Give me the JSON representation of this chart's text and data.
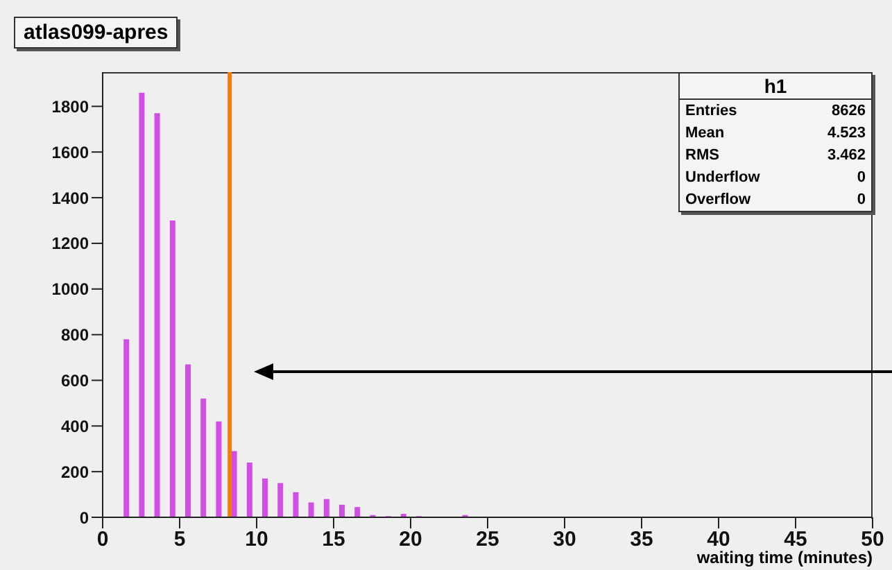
{
  "chart_data": {
    "type": "histogram",
    "title": "atlas099-apres",
    "xlabel": "waiting time (minutes)",
    "bins": [
      0,
      1,
      2,
      3,
      4,
      5,
      6,
      7,
      8,
      9,
      10,
      11,
      12,
      13,
      14,
      15,
      16,
      17,
      18,
      19,
      20,
      21,
      22,
      23,
      24,
      25,
      26,
      27,
      28,
      29,
      30,
      31,
      32,
      33,
      34,
      35,
      36,
      37,
      38,
      39,
      40,
      41,
      42,
      43,
      44,
      45,
      46,
      47,
      48,
      49,
      50
    ],
    "values": [
      0,
      780,
      1860,
      1770,
      1300,
      670,
      520,
      420,
      290,
      240,
      170,
      150,
      110,
      65,
      80,
      55,
      45,
      10,
      5,
      15,
      5,
      3,
      3,
      10,
      0,
      0,
      0,
      0,
      0,
      0,
      0,
      0,
      0,
      0,
      0,
      0,
      0,
      0,
      0,
      0,
      0,
      0,
      0,
      0,
      0,
      0,
      0,
      0,
      0,
      0
    ],
    "color": "#d24fe6",
    "xlim": [
      0,
      50
    ],
    "xticks": [
      0,
      5,
      10,
      15,
      20,
      25,
      30,
      35,
      40,
      45,
      50
    ],
    "ylim": [
      0,
      1950
    ],
    "yticks": [
      0,
      200,
      400,
      600,
      800,
      1000,
      1200,
      1400,
      1600,
      1800
    ],
    "ref_lines": [
      {
        "axis": "x",
        "value": 8.25,
        "color": "#f07d10"
      }
    ],
    "annotations": [
      "h1",
      "Entries",
      "8626",
      "Mean",
      "4.523",
      "RMS",
      "3.462",
      "Underflow",
      "0",
      "Overflow",
      "0"
    ],
    "grid": false
  }
}
